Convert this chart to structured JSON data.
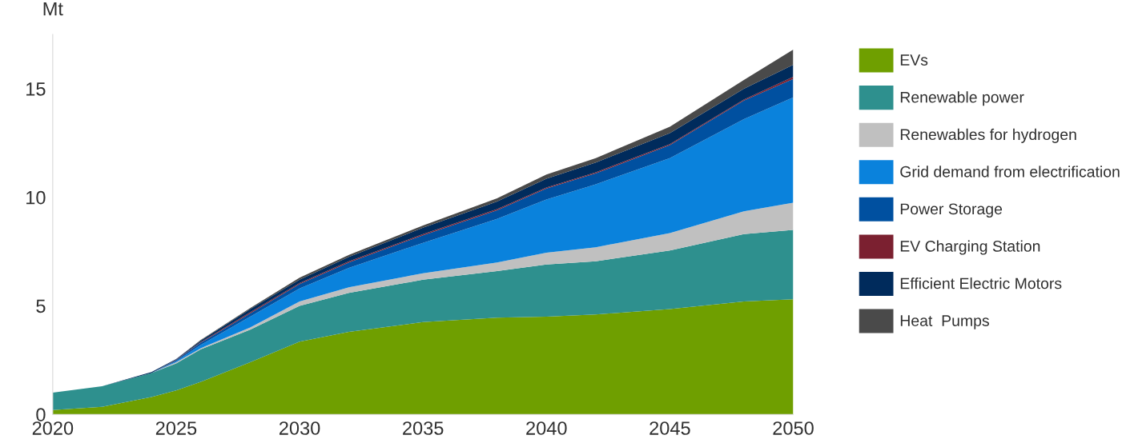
{
  "chart_data": {
    "type": "area",
    "stacked": true,
    "ylabel": "Mt",
    "x": [
      2020,
      2022,
      2024,
      2025,
      2026,
      2028,
      2030,
      2032,
      2035,
      2038,
      2040,
      2042,
      2045,
      2048,
      2050
    ],
    "xlim": [
      2020,
      2050
    ],
    "xticks": [
      2020,
      2025,
      2030,
      2035,
      2040,
      2045,
      2050
    ],
    "ylim": [
      0,
      17.5
    ],
    "yticks": [
      0,
      5,
      10,
      15
    ],
    "grid": false,
    "legend": "right",
    "series": [
      {
        "name": "EVs",
        "color": "#6f9f00",
        "values": [
          0.2,
          0.35,
          0.8,
          1.1,
          1.5,
          2.4,
          3.35,
          3.8,
          4.25,
          4.45,
          4.5,
          4.6,
          4.85,
          5.2,
          5.3
        ]
      },
      {
        "name": "Renewable power",
        "color": "#2e908e",
        "values": [
          0.8,
          0.95,
          1.1,
          1.25,
          1.5,
          1.5,
          1.65,
          1.8,
          1.95,
          2.15,
          2.4,
          2.45,
          2.7,
          3.1,
          3.2
        ]
      },
      {
        "name": "Renewables for hydrogen",
        "color": "#c0c0c0",
        "values": [
          0,
          0,
          0,
          0.05,
          0.05,
          0.1,
          0.2,
          0.25,
          0.3,
          0.4,
          0.55,
          0.65,
          0.8,
          1.05,
          1.25
        ]
      },
      {
        "name": "Grid demand from electrification",
        "color": "#0a82dc",
        "values": [
          0,
          0,
          0,
          0.05,
          0.15,
          0.5,
          0.6,
          0.9,
          1.4,
          2.0,
          2.45,
          2.9,
          3.45,
          4.25,
          4.85
        ]
      },
      {
        "name": "Power Storage",
        "color": "#0050a0",
        "values": [
          0,
          0,
          0,
          0.05,
          0.1,
          0.15,
          0.2,
          0.25,
          0.35,
          0.4,
          0.5,
          0.5,
          0.6,
          0.85,
          0.85
        ]
      },
      {
        "name": "EV Charging Station",
        "color": "#7b2030",
        "values": [
          0,
          0,
          0,
          0.02,
          0.03,
          0.05,
          0.05,
          0.05,
          0.05,
          0.05,
          0.05,
          0.05,
          0.05,
          0.05,
          0.1
        ]
      },
      {
        "name": "Efficient Electric Motors",
        "color": "#002b5c",
        "values": [
          0,
          0,
          0.05,
          0.03,
          0.07,
          0.15,
          0.15,
          0.2,
          0.3,
          0.35,
          0.4,
          0.45,
          0.5,
          0.5,
          0.55
        ]
      },
      {
        "name": "Heat  Pumps",
        "color": "#4a4a4a",
        "values": [
          0,
          0,
          0,
          0,
          0.03,
          0.05,
          0.1,
          0.1,
          0.1,
          0.15,
          0.2,
          0.2,
          0.3,
          0.4,
          0.7
        ]
      }
    ]
  }
}
